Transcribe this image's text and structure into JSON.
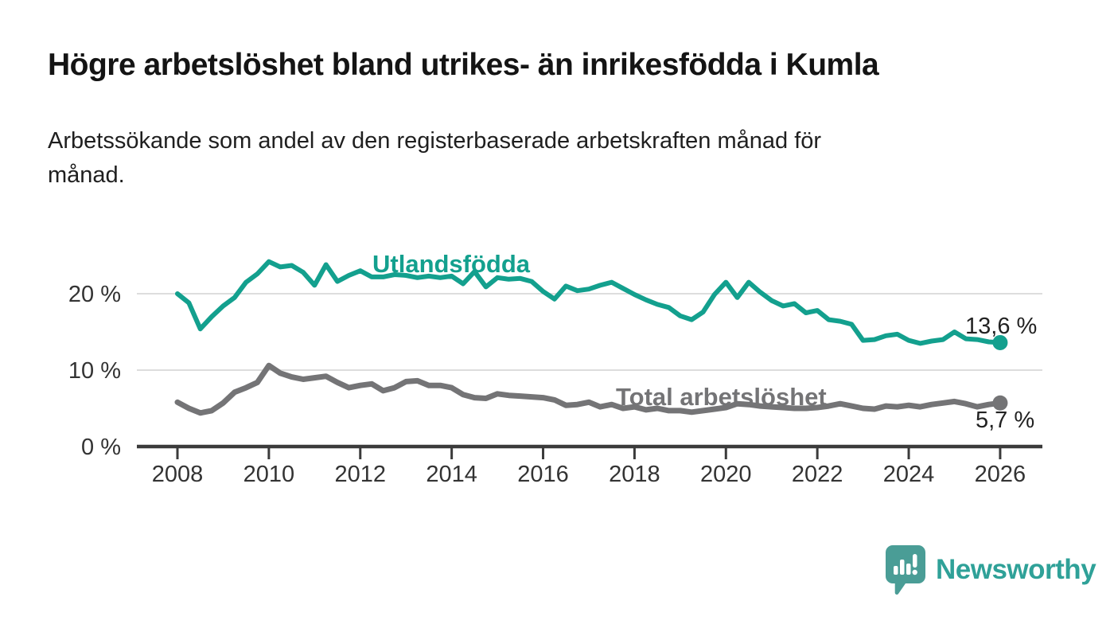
{
  "header": {
    "title": "Högre arbetslöshet bland utrikes- än inrikesfödda i Kumla",
    "subtitle": "Arbetssökande som andel av den registerbaserade arbetskraften månad för\nmånad."
  },
  "chart_data": {
    "type": "line",
    "title": "Högre arbetslöshet bland utrikes- än inrikesfödda i Kumla",
    "subtitle": "Arbetssökande som andel av den registerbaserade arbetskraften månad för månad.",
    "xlabel": "",
    "ylabel": "",
    "x_start": 2008,
    "x_step_years": 0.25,
    "xlim": [
      2007.1,
      2026.9
    ],
    "ylim": [
      0,
      26
    ],
    "grid": true,
    "grid_color": "#dddddd",
    "axis_color": "#3b3b3b",
    "tick_label_color": "#333333",
    "legend": "inline-labels",
    "x_ticks": [
      "2008",
      "2010",
      "2012",
      "2014",
      "2016",
      "2018",
      "2020",
      "2022",
      "2024",
      "2026"
    ],
    "y_ticks": [
      {
        "value": 0,
        "label": "0 %"
      },
      {
        "value": 10,
        "label": "10 %"
      },
      {
        "value": 20,
        "label": "20 %"
      }
    ],
    "series": [
      {
        "name": "Utlandsfödda",
        "color": "#13a08e",
        "end_label": "13,6 %",
        "end_value": 13.6,
        "values": [
          20.0,
          18.8,
          15.4,
          17.0,
          18.4,
          19.5,
          21.5,
          22.6,
          24.2,
          23.5,
          23.7,
          22.8,
          21.1,
          23.8,
          21.6,
          22.4,
          23.0,
          22.2,
          22.2,
          22.5,
          22.4,
          22.1,
          22.3,
          22.1,
          22.3,
          21.3,
          22.9,
          20.9,
          22.1,
          21.9,
          22.0,
          21.6,
          20.3,
          19.3,
          21.0,
          20.4,
          20.6,
          21.1,
          21.5,
          20.7,
          19.9,
          19.2,
          18.6,
          18.2,
          17.1,
          16.6,
          17.6,
          19.9,
          21.5,
          19.5,
          21.5,
          20.2,
          19.1,
          18.4,
          18.7,
          17.5,
          17.8,
          16.6,
          16.4,
          16.0,
          13.9,
          14.0,
          14.5,
          14.7,
          13.9,
          13.5,
          13.8,
          14.0,
          15.0,
          14.1,
          14.0,
          13.7,
          13.6
        ]
      },
      {
        "name": "Total arbetslöshet",
        "color": "#747476",
        "end_label": "5,7 %",
        "end_value": 5.7,
        "values": [
          5.8,
          5.0,
          4.4,
          4.7,
          5.7,
          7.1,
          7.7,
          8.4,
          10.6,
          9.6,
          9.1,
          8.8,
          9.0,
          9.2,
          8.4,
          7.7,
          8.0,
          8.2,
          7.3,
          7.7,
          8.5,
          8.6,
          8.0,
          8.0,
          7.7,
          6.8,
          6.4,
          6.3,
          6.9,
          6.7,
          6.6,
          6.5,
          6.4,
          6.1,
          5.4,
          5.5,
          5.8,
          5.2,
          5.5,
          5.0,
          5.2,
          4.8,
          5.0,
          4.7,
          4.7,
          4.5,
          4.7,
          4.9,
          5.1,
          5.6,
          5.5,
          5.3,
          5.2,
          5.1,
          5.0,
          5.0,
          5.1,
          5.3,
          5.6,
          5.3,
          5.0,
          4.9,
          5.3,
          5.2,
          5.4,
          5.2,
          5.5,
          5.7,
          5.9,
          5.6,
          5.2,
          5.5,
          5.7
        ]
      }
    ]
  },
  "footer": {
    "brand": "Newsworthy"
  },
  "colors": {
    "accent_teal": "#13a08e",
    "series_gray": "#747476",
    "value_label": "#222222",
    "brand_icon": "#4a9d96",
    "brand_text": "#2fa198"
  }
}
